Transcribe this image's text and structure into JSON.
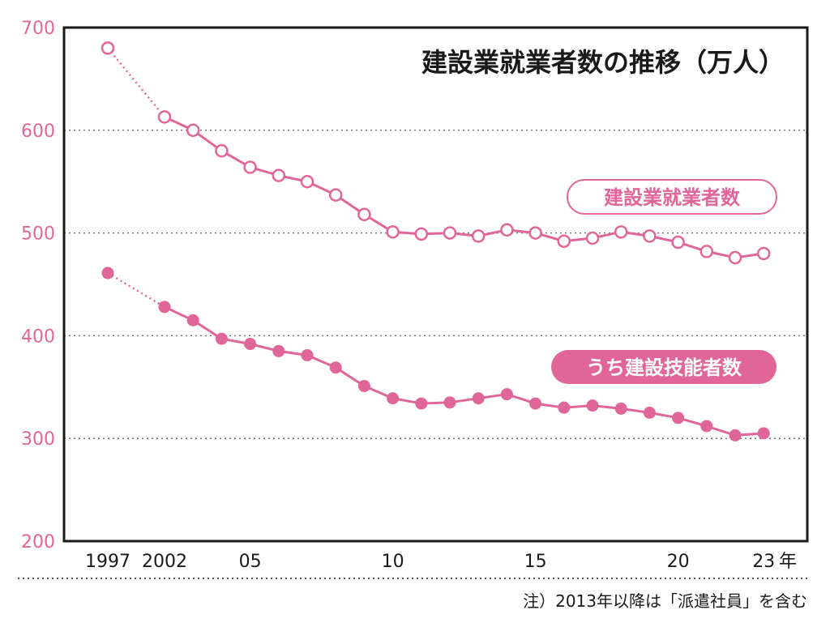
{
  "chart_data": {
    "type": "line",
    "title": "建設業就業者数の推移（万人）",
    "x_unit": "年",
    "note": "注）2013年以降は「派遣社員」を含む",
    "x": [
      1997,
      2002,
      2003,
      2004,
      2005,
      2006,
      2007,
      2008,
      2009,
      2010,
      2011,
      2012,
      2013,
      2014,
      2015,
      2016,
      2017,
      2018,
      2019,
      2020,
      2021,
      2022,
      2023
    ],
    "x_tick_values": [
      1997,
      2002,
      2005,
      2010,
      2015,
      2020,
      2023
    ],
    "x_tick_labels": [
      "1997",
      "2002",
      "05",
      "10",
      "15",
      "20",
      "23"
    ],
    "y_ticks": [
      "200",
      "300",
      "400",
      "500",
      "600",
      "700"
    ],
    "ylim": [
      200,
      700
    ],
    "grid": "horizontal dotted",
    "series": [
      {
        "name": "建設業就業者数",
        "marker": "open-circle",
        "color": "#e0669a",
        "values": [
          680,
          613,
          600,
          580,
          564,
          556,
          550,
          537,
          518,
          501,
          499,
          500,
          497,
          503,
          500,
          492,
          495,
          501,
          497,
          491,
          482,
          476,
          480
        ]
      },
      {
        "name": "うち建設技能者数",
        "marker": "filled-circle",
        "color": "#e0669a",
        "values": [
          461,
          428,
          415,
          397,
          392,
          385,
          381,
          369,
          351,
          339,
          334,
          335,
          339,
          343,
          334,
          330,
          332,
          329,
          325,
          320,
          312,
          303,
          305
        ]
      }
    ]
  }
}
